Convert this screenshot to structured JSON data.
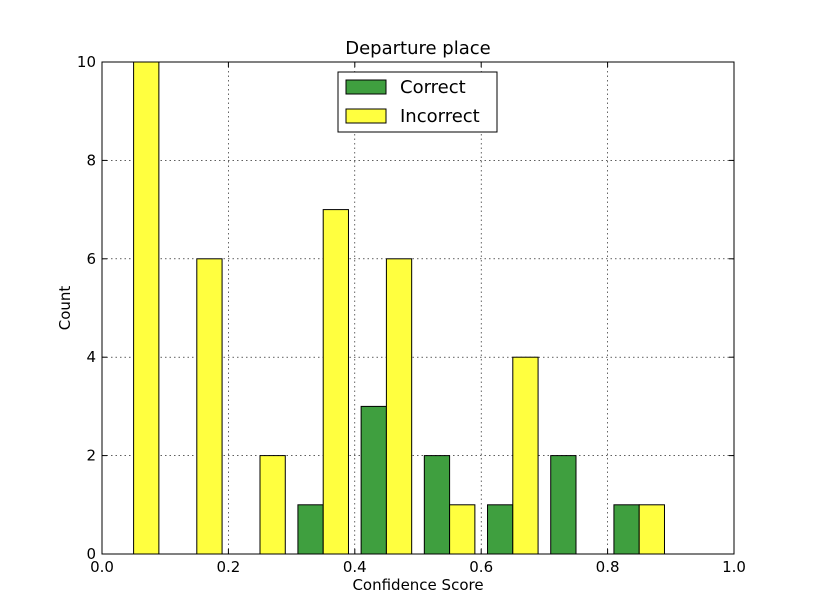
{
  "chart_data": {
    "type": "bar",
    "title": "Departure place",
    "xlabel": "Confidence Score",
    "ylabel": "Count",
    "xlim": [
      0.0,
      1.0
    ],
    "ylim": [
      0,
      10
    ],
    "xticks": [
      "0.0",
      "0.2",
      "0.4",
      "0.6",
      "0.8",
      "1.0"
    ],
    "yticks": [
      "0",
      "2",
      "4",
      "6",
      "8",
      "10"
    ],
    "grid": true,
    "legend_position": "top-center",
    "bins": [
      0.05,
      0.15,
      0.25,
      0.35,
      0.45,
      0.55,
      0.65,
      0.75,
      0.85,
      0.95
    ],
    "series": [
      {
        "name": "Correct",
        "color": "#3f9f3f",
        "values": [
          0,
          0,
          0,
          1,
          3,
          2,
          1,
          2,
          1,
          0
        ]
      },
      {
        "name": "Incorrect",
        "color": "#ffff3f",
        "values": [
          10,
          6,
          2,
          7,
          6,
          1,
          4,
          0,
          1,
          0
        ]
      }
    ]
  }
}
